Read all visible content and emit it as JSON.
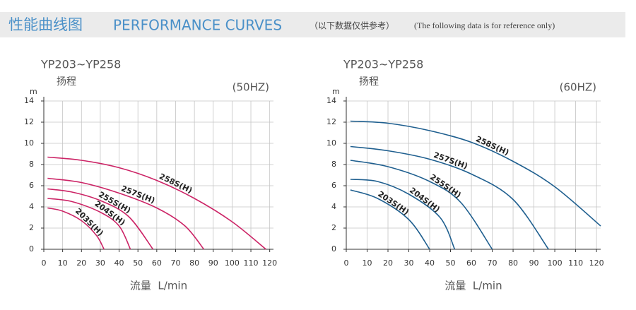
{
  "header": {
    "title_cn": "性能曲线图",
    "title_en": "PERFORMANCE CURVES",
    "note_cn": "（以下数据仅供参考）",
    "note_en": "(The following data is for reference only)"
  },
  "chart_data": [
    {
      "type": "line",
      "title": "YP203~YP258",
      "y_label": "扬程",
      "y_unit": "m",
      "annotation": "(50HZ)",
      "x_label": "流量  L/min",
      "xlim": [
        0,
        122
      ],
      "xticks": [
        0,
        10,
        20,
        30,
        40,
        50,
        60,
        70,
        80,
        90,
        100,
        110,
        120
      ],
      "ylim": [
        0,
        14
      ],
      "yticks": [
        0,
        2,
        4,
        6,
        8,
        10,
        12,
        14
      ],
      "grid": true,
      "series": [
        {
          "name": "258S(H)",
          "color": "#cc2466",
          "x": [
            2,
            20,
            40,
            60,
            80,
            100,
            118
          ],
          "values": [
            8.7,
            8.4,
            7.7,
            6.5,
            4.8,
            2.6,
            0
          ]
        },
        {
          "name": "257S(H)",
          "color": "#cc2466",
          "x": [
            2,
            20,
            40,
            60,
            75,
            85
          ],
          "values": [
            6.7,
            6.3,
            5.3,
            3.9,
            2.2,
            0
          ]
        },
        {
          "name": "255S(H)",
          "color": "#cc2466",
          "x": [
            2,
            15,
            30,
            45,
            58
          ],
          "values": [
            5.7,
            5.4,
            4.6,
            3.1,
            0
          ]
        },
        {
          "name": "204S(H)",
          "color": "#cc2466",
          "x": [
            2,
            15,
            30,
            40,
            46
          ],
          "values": [
            4.8,
            4.5,
            3.5,
            2.2,
            0
          ]
        },
        {
          "name": "203S(H)",
          "color": "#cc2466",
          "x": [
            2,
            10,
            20,
            28,
            32
          ],
          "values": [
            3.9,
            3.6,
            2.7,
            1.3,
            0
          ]
        }
      ]
    },
    {
      "type": "line",
      "title": "YP203~YP258",
      "y_label": "扬程",
      "y_unit": "m",
      "annotation": "(60HZ)",
      "x_label": "流量  L/min",
      "xlim": [
        0,
        122
      ],
      "xticks": [
        0,
        10,
        20,
        30,
        40,
        50,
        60,
        70,
        80,
        90,
        100,
        110,
        120
      ],
      "ylim": [
        0,
        14
      ],
      "yticks": [
        0,
        2,
        4,
        6,
        8,
        10,
        12,
        14
      ],
      "grid": true,
      "series": [
        {
          "name": "258S(H)",
          "color": "#1f5f8f",
          "x": [
            2,
            20,
            40,
            60,
            80,
            100,
            122
          ],
          "values": [
            12.1,
            11.9,
            11.2,
            10.1,
            8.3,
            5.9,
            2.2
          ]
        },
        {
          "name": "257S(H)",
          "color": "#1f5f8f",
          "x": [
            2,
            20,
            40,
            60,
            80,
            97
          ],
          "values": [
            9.7,
            9.3,
            8.5,
            7.1,
            4.7,
            0
          ]
        },
        {
          "name": "255S(H)",
          "color": "#1f5f8f",
          "x": [
            2,
            20,
            40,
            55,
            70
          ],
          "values": [
            8.4,
            7.8,
            6.4,
            4.4,
            0
          ]
        },
        {
          "name": "204S(H)",
          "color": "#1f5f8f",
          "x": [
            2,
            15,
            30,
            45,
            52
          ],
          "values": [
            6.6,
            6.4,
            5.2,
            3.0,
            0
          ]
        },
        {
          "name": "203S(H)",
          "color": "#1f5f8f",
          "x": [
            2,
            15,
            30,
            40
          ],
          "values": [
            5.6,
            4.8,
            2.8,
            0
          ]
        }
      ]
    }
  ]
}
